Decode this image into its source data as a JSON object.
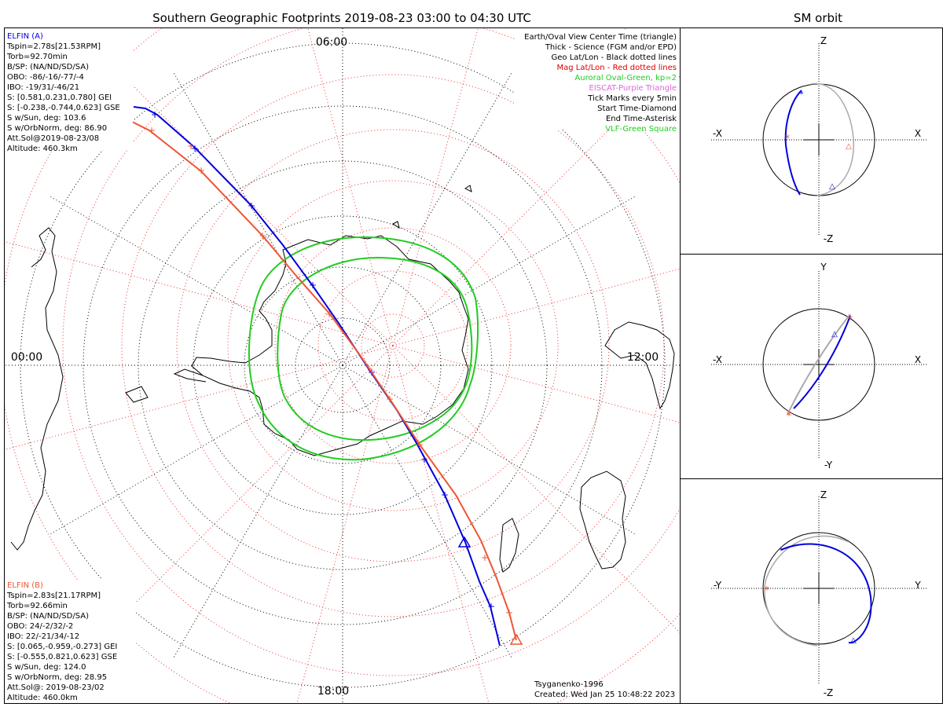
{
  "main": {
    "title": "Southern Geographic Footprints 2019-08-23 03:00 to 04:30 UTC",
    "time_labels": {
      "top": "06:00",
      "left": "00:00",
      "right": "12:00",
      "bottom": "18:00"
    },
    "colors": {
      "elfin_a": "#0000dd",
      "elfin_b": "#ee5533",
      "oval": "#22cc22",
      "grid_mag": "#ee3333",
      "grid_geo": "#000000"
    }
  },
  "elfin_a": {
    "name": "ELFIN (A)",
    "lines": [
      "Tspin=2.78s[21.53RPM]",
      "Torb=92.70min",
      "B/SP: (NA/ND/SD/SA)",
      "OBO: -86/-16/-77/-4",
      "IBO: -19/31/-46/21",
      "S: [0.581,0.231,0.780] GEI",
      "S: [-0.238,-0.744,0.623] GSE",
      "S w/Sun, deg: 103.6",
      "S w/OrbNorm, deg: 86.90",
      "Att.Sol@2019-08-23/08",
      "Altitude: 460.3km"
    ]
  },
  "elfin_b": {
    "name": "ELFIN (B)",
    "lines": [
      "Tspin=2.83s[21.17RPM]",
      "Torb=92.66min",
      "B/SP: (NA/ND/SD/SA)",
      "OBO: 24/-2/32/-2",
      "IBO: 22/-21/34/-12",
      "S: [0.065,-0.959,-0.273] GEI",
      "S: [-0.555,0.821,0.623] GSE",
      "S w/Sun, deg: 124.0",
      "S w/OrbNorm, deg: 28.95",
      "Att.Sol@: 2019-08-23/02",
      "Altitude: 460.0km"
    ]
  },
  "legend": [
    {
      "text": "Earth/Oval View Center Time (triangle)",
      "color": "#000000"
    },
    {
      "text": "Thick - Science (FGM and/or EPD)",
      "color": "#000000"
    },
    {
      "text": "Geo Lat/Lon - Black dotted lines",
      "color": "#000000"
    },
    {
      "text": "Mag Lat/Lon - Red dotted lines",
      "color": "#dd0000"
    },
    {
      "text": "Auroral Oval-Green, kp=2",
      "color": "#22cc22"
    },
    {
      "text": "EISCAT-Purple Triangle",
      "color": "#dd66dd"
    },
    {
      "text": "Tick Marks every 5min",
      "color": "#000000"
    },
    {
      "text": "Start Time-Diamond",
      "color": "#000000"
    },
    {
      "text": "End Time-Asterisk",
      "color": "#000000"
    },
    {
      "text": "VLF-Green Square",
      "color": "#22cc22"
    }
  ],
  "credits": {
    "model": "Tsyganenko-1996",
    "created": "Created: Wed Jan 25 10:48:22 2023"
  },
  "sm_orbit": {
    "title": "SM orbit",
    "panels": [
      {
        "top": "Z",
        "bottom": "-Z",
        "left": "-X",
        "right": "X"
      },
      {
        "top": "Y",
        "bottom": "-Y",
        "left": "-X",
        "right": "X"
      },
      {
        "top": "Z",
        "bottom": "-Z",
        "left": "-Y",
        "right": "Y"
      }
    ]
  }
}
